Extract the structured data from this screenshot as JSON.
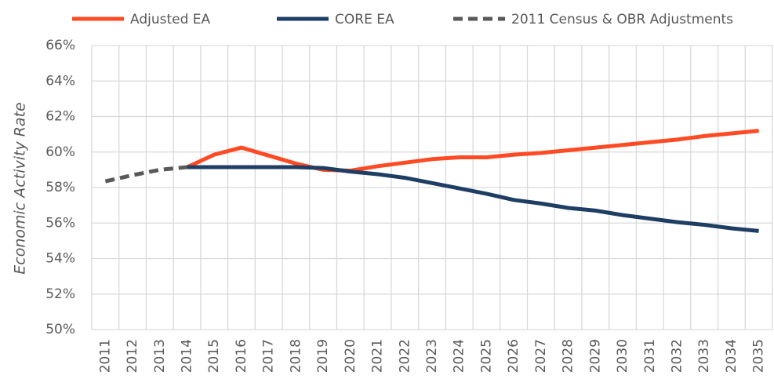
{
  "chart_data": {
    "type": "line",
    "y_axis_label": "Economic Activity Rate",
    "categories": [
      "2011",
      "2012",
      "2013",
      "2014",
      "2015",
      "2016",
      "2017",
      "2018",
      "2019",
      "2020",
      "2021",
      "2022",
      "2023",
      "2024",
      "2025",
      "2026",
      "2027",
      "2028",
      "2029",
      "2030",
      "2031",
      "2032",
      "2033",
      "2034",
      "2035"
    ],
    "series": [
      {
        "name": "Adjusted EA",
        "color": "#ff4a24",
        "line_style": "solid",
        "values": [
          null,
          null,
          null,
          59.15,
          59.85,
          60.25,
          59.8,
          59.35,
          59.0,
          58.95,
          59.2,
          59.4,
          59.6,
          59.7,
          59.7,
          59.85,
          59.95,
          60.1,
          60.25,
          60.4,
          60.55,
          60.7,
          60.9,
          61.05,
          61.2
        ]
      },
      {
        "name": "CORE EA",
        "color": "#1f3e64",
        "line_style": "solid",
        "values": [
          null,
          null,
          null,
          59.15,
          59.15,
          59.15,
          59.15,
          59.15,
          59.1,
          58.9,
          58.75,
          58.55,
          58.25,
          57.95,
          57.65,
          57.3,
          57.1,
          56.85,
          56.7,
          56.45,
          56.25,
          56.05,
          55.9,
          55.7,
          55.55
        ]
      },
      {
        "name": "2011 Census & OBR Adjustments",
        "color": "#595959",
        "line_style": "dashed",
        "values": [
          58.35,
          58.7,
          59.0,
          59.15,
          null,
          null,
          null,
          null,
          null,
          null,
          null,
          null,
          null,
          null,
          null,
          null,
          null,
          null,
          null,
          null,
          null,
          null,
          null,
          null,
          null
        ]
      }
    ],
    "ylim": [
      50,
      66
    ],
    "yticks": [
      {
        "value": 50,
        "label": "50%"
      },
      {
        "value": 52,
        "label": "52%"
      },
      {
        "value": 54,
        "label": "54%"
      },
      {
        "value": 56,
        "label": "56%"
      },
      {
        "value": 58,
        "label": "58%"
      },
      {
        "value": 60,
        "label": "60%"
      },
      {
        "value": 62,
        "label": "62%"
      },
      {
        "value": 64,
        "label": "64%"
      },
      {
        "value": 66,
        "label": "66%"
      }
    ],
    "grid": true,
    "legend_position": "top"
  }
}
